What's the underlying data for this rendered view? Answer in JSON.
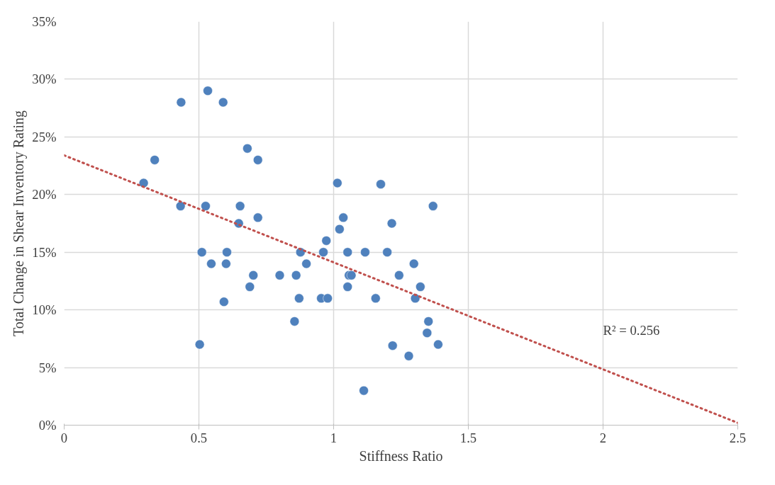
{
  "chart_data": {
    "type": "scatter",
    "xlabel": "Stiffness Ratio",
    "ylabel": "Total Change in Shear Inventory Rating",
    "xlim": [
      0,
      2.5
    ],
    "xticks": [
      0,
      0.5,
      1,
      1.5,
      2,
      2.5
    ],
    "ylim": [
      0,
      35
    ],
    "yticks": [
      {
        "value": 0,
        "label": "0%"
      },
      {
        "value": 5,
        "label": "5%"
      },
      {
        "value": 10,
        "label": "10%"
      },
      {
        "value": 15,
        "label": "15%"
      },
      {
        "value": 20,
        "label": "20%"
      },
      {
        "value": 25,
        "label": "25%"
      },
      {
        "value": 30,
        "label": "30%"
      },
      {
        "value": 35,
        "label": "35%"
      }
    ],
    "grid": true,
    "marker": "circle",
    "annotations": [
      "R² = 0.256"
    ],
    "series": [
      {
        "color": "#4f81bd",
        "x": [
          0.295,
          0.336,
          0.434,
          0.432,
          0.533,
          0.59,
          0.525,
          0.511,
          0.546,
          0.503,
          0.604,
          0.601,
          0.593,
          0.68,
          0.719,
          0.653,
          0.648,
          0.719,
          0.689,
          0.702,
          0.8,
          0.861,
          0.877,
          0.872,
          0.899,
          0.855,
          0.954,
          0.978,
          0.962,
          0.973,
          1.014,
          1.022,
          1.036,
          1.052,
          1.052,
          1.057,
          1.066,
          1.117,
          1.112,
          1.156,
          1.175,
          1.199,
          1.216,
          1.219,
          1.243,
          1.279,
          1.298,
          1.303,
          1.322,
          1.352,
          1.347,
          1.369,
          1.388
        ],
        "values": [
          21.0,
          23.0,
          28.0,
          19.0,
          29.0,
          28.0,
          19.0,
          15.0,
          14.0,
          7.0,
          15.0,
          14.0,
          10.7,
          24.0,
          23.0,
          19.0,
          17.5,
          18.0,
          12.0,
          13.0,
          13.0,
          13.0,
          15.0,
          11.0,
          14.0,
          9.0,
          11.0,
          11.0,
          15.0,
          16.0,
          21.0,
          17.0,
          18.0,
          15.0,
          12.0,
          13.0,
          13.0,
          15.0,
          3.0,
          11.0,
          20.9,
          15.0,
          17.5,
          6.9,
          13.0,
          6.0,
          14.0,
          11.0,
          12.0,
          9.0,
          8.0,
          19.0,
          7.0
        ]
      },
      {
        "type": "line",
        "color": "#c0504d",
        "line_style": "dotted",
        "marker": "none",
        "x": [
          0,
          2.5
        ],
        "values": [
          23.4,
          0.2
        ]
      }
    ]
  }
}
